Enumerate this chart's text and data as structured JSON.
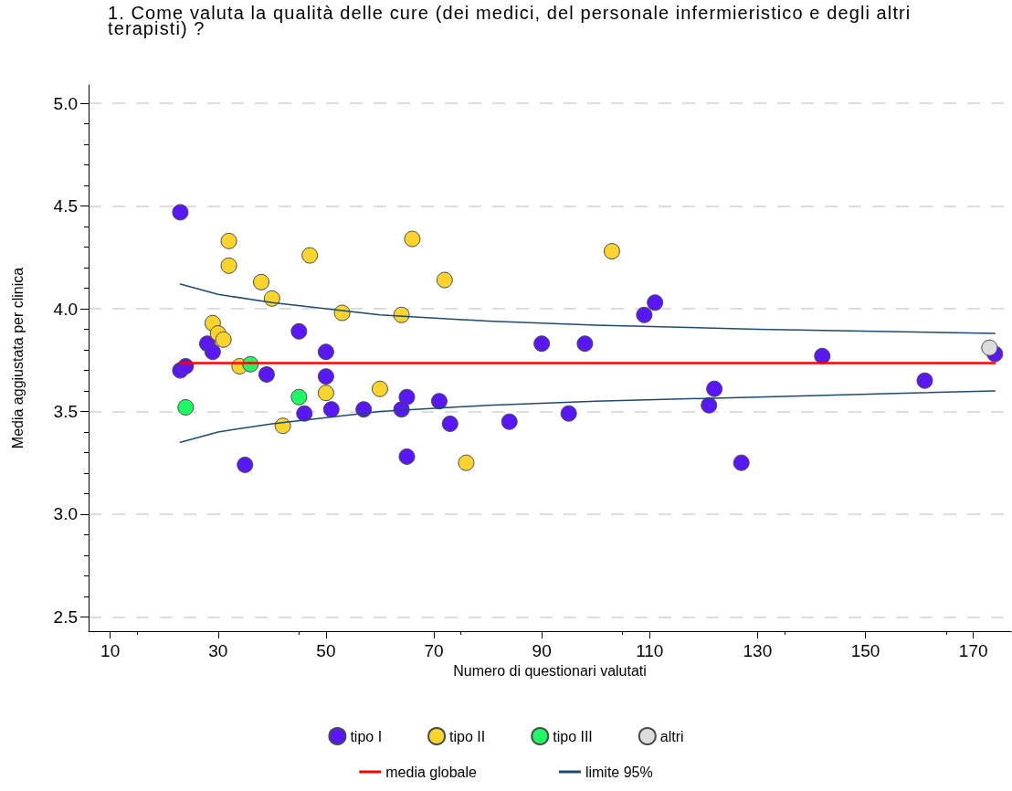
{
  "chart_data": {
    "type": "scatter",
    "title": "1. Come valuta la qualità delle cure (dei medici, del personale infermieristico e degli altri terapisti) ?",
    "xlabel": "Numero di questionari valutati",
    "ylabel": "Media aggiustata per clinica",
    "xlim": [
      6,
      177
    ],
    "xticks": [
      10,
      30,
      50,
      70,
      90,
      110,
      130,
      150,
      170
    ],
    "ylim": [
      2.43,
      5.09
    ],
    "yticks": [
      {
        "value": 2.5,
        "label": "2.5"
      },
      {
        "value": 3,
        "label": "3.0"
      },
      {
        "value": 3.5,
        "label": "3.5"
      },
      {
        "value": 4,
        "label": "4.0"
      },
      {
        "value": 4.5,
        "label": "4.5"
      },
      {
        "value": 5,
        "label": "5.0"
      }
    ],
    "grid": "y",
    "legend": "bottom",
    "marker": "circle",
    "series": [
      {
        "name": "tipo I",
        "color": "#5a17f5",
        "x": [
          23,
          23,
          24,
          28,
          29,
          45,
          50,
          50,
          51,
          46,
          35,
          39,
          65,
          64,
          57,
          71,
          73,
          84,
          65,
          90,
          111,
          109,
          98,
          95,
          122,
          121,
          127,
          142,
          161,
          174
        ],
        "values": [
          4.47,
          3.7,
          3.72,
          3.83,
          3.79,
          3.89,
          3.79,
          3.67,
          3.51,
          3.49,
          3.24,
          3.68,
          3.57,
          3.51,
          3.51,
          3.55,
          3.44,
          3.45,
          3.28,
          3.83,
          4.03,
          3.97,
          3.83,
          3.49,
          3.61,
          3.53,
          3.25,
          3.77,
          3.65,
          3.78
        ]
      },
      {
        "name": "tipo II",
        "color": "#f8d42c",
        "x": [
          29,
          30,
          31,
          50,
          42,
          34,
          32,
          32,
          38,
          40,
          47,
          53,
          66,
          72,
          64,
          60,
          76,
          103
        ],
        "values": [
          3.93,
          3.88,
          3.85,
          3.59,
          3.43,
          3.72,
          4.33,
          4.21,
          4.13,
          4.05,
          4.26,
          3.98,
          4.34,
          4.14,
          3.97,
          3.61,
          3.25,
          4.28
        ]
      },
      {
        "name": "tipo III",
        "color": "#1ff865",
        "x": [
          45,
          24,
          36
        ],
        "values": [
          3.57,
          3.52,
          3.73
        ]
      },
      {
        "name": "altri",
        "color": "#dcdcdc",
        "x": [
          173
        ],
        "values": [
          3.81
        ]
      },
      {
        "name": "media globale",
        "type": "line",
        "marker": "none",
        "color": "#ff0000",
        "x": [
          23,
          174
        ],
        "values": [
          3.735,
          3.735
        ]
      },
      {
        "name": "limite 95%",
        "type": "line",
        "marker": "none",
        "color": "#1a4a78",
        "x": [
          23,
          30,
          40,
          50,
          60,
          80,
          100,
          130,
          174
        ],
        "values": [
          4.12,
          4.07,
          4.03,
          4.0,
          3.97,
          3.94,
          3.92,
          3.9,
          3.88
        ]
      },
      {
        "type": "line",
        "marker": "none",
        "color": "#1a4a78",
        "x": [
          23,
          30,
          40,
          50,
          60,
          80,
          100,
          130,
          174
        ],
        "values": [
          3.35,
          3.4,
          3.44,
          3.47,
          3.5,
          3.53,
          3.55,
          3.57,
          3.6
        ]
      }
    ]
  }
}
